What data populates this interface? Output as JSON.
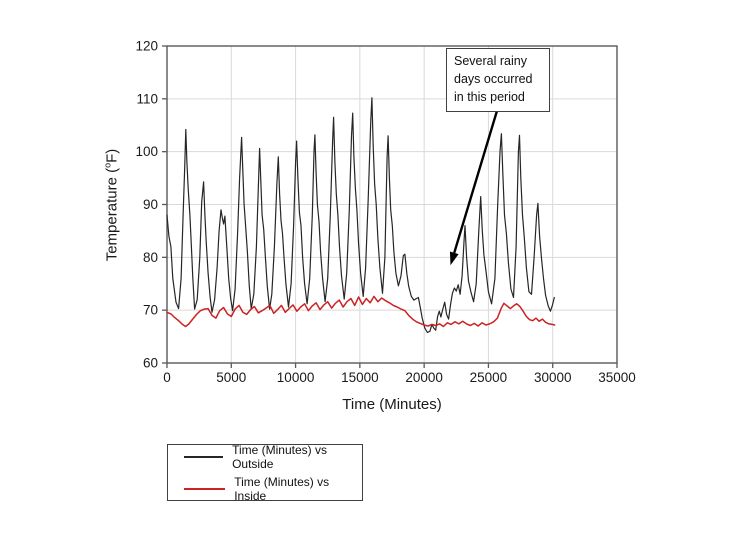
{
  "page": {
    "background": "#ffffff"
  },
  "chart_data": {
    "type": "line",
    "title": "",
    "xlabel": "Time (Minutes)",
    "ylabel": "Temperature (°F)",
    "ylabel_parts": {
      "prefix": "Temperature (",
      "sup": "o",
      "suffix": "F)"
    },
    "xlim": [
      0,
      35000
    ],
    "ylim": [
      60,
      120
    ],
    "xticks": [
      0,
      5000,
      10000,
      15000,
      20000,
      25000,
      30000,
      35000
    ],
    "yticks": [
      60,
      70,
      80,
      90,
      100,
      110,
      120
    ],
    "grid": true,
    "legend_position": "below-left",
    "colors": {
      "frame": "#595959",
      "gridline": "#d9d9d9",
      "tick_text": "#1a1a1a",
      "annotation_border": "#404040",
      "arrow": "#000000"
    },
    "annotation": {
      "text": "Several rainy days occurred in this period",
      "arrow_from": {
        "x": 25700,
        "y": 108.0
      },
      "arrow_to": {
        "x": 22050,
        "y": 78.5
      }
    },
    "series": [
      {
        "name": "Time (Minutes) vs Outside",
        "color": "#262626",
        "width": 1.2,
        "points": [
          [
            0,
            88
          ],
          [
            150,
            84
          ],
          [
            300,
            82
          ],
          [
            450,
            76
          ],
          [
            700,
            71.5
          ],
          [
            900,
            70.3
          ],
          [
            1100,
            76
          ],
          [
            1250,
            88
          ],
          [
            1380,
            97
          ],
          [
            1460,
            104.2
          ],
          [
            1550,
            98
          ],
          [
            1650,
            93
          ],
          [
            1780,
            88
          ],
          [
            1900,
            82
          ],
          [
            2000,
            76.5
          ],
          [
            2150,
            70.2
          ],
          [
            2350,
            72
          ],
          [
            2550,
            80
          ],
          [
            2700,
            90.5
          ],
          [
            2780,
            92.5
          ],
          [
            2850,
            94.3
          ],
          [
            2950,
            88
          ],
          [
            3050,
            83
          ],
          [
            3200,
            77
          ],
          [
            3350,
            72.5
          ],
          [
            3500,
            69.6
          ],
          [
            3700,
            72
          ],
          [
            3900,
            78
          ],
          [
            4050,
            85
          ],
          [
            4200,
            89
          ],
          [
            4300,
            87.5
          ],
          [
            4400,
            86.3
          ],
          [
            4500,
            87.8
          ],
          [
            4650,
            82
          ],
          [
            4800,
            76
          ],
          [
            4950,
            72.3
          ],
          [
            5100,
            69.9
          ],
          [
            5300,
            74
          ],
          [
            5500,
            85
          ],
          [
            5650,
            95
          ],
          [
            5800,
            102.7
          ],
          [
            5900,
            96
          ],
          [
            6000,
            90
          ],
          [
            6100,
            86.5
          ],
          [
            6250,
            81
          ],
          [
            6400,
            74.5
          ],
          [
            6550,
            70.3
          ],
          [
            6750,
            73
          ],
          [
            6950,
            82
          ],
          [
            7100,
            93
          ],
          [
            7200,
            100.6
          ],
          [
            7300,
            94
          ],
          [
            7400,
            88
          ],
          [
            7520,
            85.3
          ],
          [
            7650,
            80
          ],
          [
            7800,
            74.5
          ],
          [
            7980,
            70.2
          ],
          [
            8150,
            73
          ],
          [
            8350,
            82
          ],
          [
            8550,
            94
          ],
          [
            8660,
            99
          ],
          [
            8760,
            92
          ],
          [
            8870,
            87
          ],
          [
            8980,
            84.5
          ],
          [
            9100,
            80
          ],
          [
            9250,
            75
          ],
          [
            9450,
            70.6
          ],
          [
            9650,
            75
          ],
          [
            9850,
            86
          ],
          [
            10000,
            98
          ],
          [
            10080,
            102
          ],
          [
            10180,
            95
          ],
          [
            10300,
            88.5
          ],
          [
            10420,
            86
          ],
          [
            10550,
            80
          ],
          [
            10700,
            75
          ],
          [
            10900,
            71.2
          ],
          [
            11100,
            76
          ],
          [
            11300,
            88
          ],
          [
            11430,
            100
          ],
          [
            11500,
            103.2
          ],
          [
            11600,
            96
          ],
          [
            11700,
            90
          ],
          [
            11820,
            86.8
          ],
          [
            11950,
            81
          ],
          [
            12100,
            76
          ],
          [
            12300,
            71.6
          ],
          [
            12500,
            76
          ],
          [
            12700,
            88
          ],
          [
            12880,
            102
          ],
          [
            12960,
            106.5
          ],
          [
            13060,
            98
          ],
          [
            13170,
            92
          ],
          [
            13290,
            88
          ],
          [
            13420,
            82
          ],
          [
            13570,
            76.5
          ],
          [
            13780,
            72.1
          ],
          [
            13980,
            77
          ],
          [
            14180,
            89
          ],
          [
            14350,
            103
          ],
          [
            14440,
            107.3
          ],
          [
            14540,
            99
          ],
          [
            14650,
            93
          ],
          [
            14770,
            89
          ],
          [
            14900,
            82.5
          ],
          [
            15060,
            77
          ],
          [
            15260,
            72.6
          ],
          [
            15450,
            78
          ],
          [
            15650,
            91
          ],
          [
            15850,
            106
          ],
          [
            15940,
            110.2
          ],
          [
            16040,
            101
          ],
          [
            16150,
            94
          ],
          [
            16270,
            90
          ],
          [
            16400,
            83.5
          ],
          [
            16560,
            78
          ],
          [
            16760,
            73.2
          ],
          [
            16950,
            80
          ],
          [
            17120,
            99
          ],
          [
            17200,
            103
          ],
          [
            17300,
            95
          ],
          [
            17400,
            89
          ],
          [
            17520,
            86
          ],
          [
            17650,
            81
          ],
          [
            17800,
            77
          ],
          [
            18000,
            74.6
          ],
          [
            18200,
            76.5
          ],
          [
            18380,
            80.3
          ],
          [
            18500,
            80.6
          ],
          [
            18650,
            77
          ],
          [
            18800,
            74.5
          ],
          [
            19000,
            72.6
          ],
          [
            19200,
            71.9
          ],
          [
            19400,
            72.2
          ],
          [
            19550,
            72.4
          ],
          [
            19700,
            70.5
          ],
          [
            19850,
            68.5
          ],
          [
            20050,
            66.6
          ],
          [
            20250,
            65.8
          ],
          [
            20450,
            66.0
          ],
          [
            20600,
            67.3
          ],
          [
            20750,
            66.6
          ],
          [
            20900,
            66.2
          ],
          [
            21050,
            68.8
          ],
          [
            21180,
            69.8
          ],
          [
            21300,
            68.7
          ],
          [
            21450,
            70.2
          ],
          [
            21600,
            71.5
          ],
          [
            21750,
            69.2
          ],
          [
            21900,
            68.3
          ],
          [
            22050,
            71
          ],
          [
            22200,
            73.2
          ],
          [
            22350,
            74.2
          ],
          [
            22500,
            73.6
          ],
          [
            22650,
            74.8
          ],
          [
            22800,
            73
          ],
          [
            22950,
            76.5
          ],
          [
            23100,
            83
          ],
          [
            23180,
            86
          ],
          [
            23300,
            80
          ],
          [
            23450,
            75.5
          ],
          [
            23650,
            73.3
          ],
          [
            23850,
            71.6
          ],
          [
            24050,
            75
          ],
          [
            24250,
            85
          ],
          [
            24400,
            91.5
          ],
          [
            24520,
            85
          ],
          [
            24650,
            80.5
          ],
          [
            24800,
            77.5
          ],
          [
            25000,
            73.5
          ],
          [
            25250,
            71.2
          ],
          [
            25500,
            76
          ],
          [
            25720,
            90
          ],
          [
            25900,
            100
          ],
          [
            26010,
            103.4
          ],
          [
            26120,
            96
          ],
          [
            26250,
            88
          ],
          [
            26400,
            84.5
          ],
          [
            26550,
            79
          ],
          [
            26750,
            74
          ],
          [
            26950,
            72.4
          ],
          [
            27150,
            82
          ],
          [
            27330,
            100
          ],
          [
            27420,
            103.1
          ],
          [
            27520,
            95
          ],
          [
            27650,
            88
          ],
          [
            27780,
            84
          ],
          [
            27950,
            78
          ],
          [
            28150,
            73.5
          ],
          [
            28350,
            73
          ],
          [
            28550,
            80
          ],
          [
            28750,
            88
          ],
          [
            28850,
            90.2
          ],
          [
            28980,
            84
          ],
          [
            29120,
            80
          ],
          [
            29280,
            76
          ],
          [
            29450,
            72.8
          ],
          [
            29650,
            70.8
          ],
          [
            29820,
            69.8
          ],
          [
            29980,
            71
          ],
          [
            30120,
            72.4
          ]
        ]
      },
      {
        "name": "Time (Minutes) vs Inside",
        "color": "#cc2222",
        "width": 1.5,
        "points": [
          [
            0,
            69.6
          ],
          [
            300,
            69.3
          ],
          [
            600,
            68.6
          ],
          [
            900,
            68
          ],
          [
            1200,
            67.3
          ],
          [
            1450,
            66.9
          ],
          [
            1700,
            67.4
          ],
          [
            2000,
            68.3
          ],
          [
            2300,
            69.2
          ],
          [
            2600,
            69.9
          ],
          [
            2900,
            70.2
          ],
          [
            3200,
            70.3
          ],
          [
            3500,
            69.0
          ],
          [
            3800,
            68.5
          ],
          [
            4100,
            69.9
          ],
          [
            4400,
            70.5
          ],
          [
            4700,
            69.3
          ],
          [
            5000,
            68.8
          ],
          [
            5300,
            70.2
          ],
          [
            5600,
            70.9
          ],
          [
            5900,
            69.6
          ],
          [
            6200,
            69.2
          ],
          [
            6500,
            70.1
          ],
          [
            6800,
            70.7
          ],
          [
            7100,
            69.5
          ],
          [
            7400,
            69.9
          ],
          [
            7700,
            70.4
          ],
          [
            8000,
            70.9
          ],
          [
            8300,
            69.4
          ],
          [
            8600,
            70.1
          ],
          [
            8900,
            70.9
          ],
          [
            9200,
            69.6
          ],
          [
            9500,
            70.3
          ],
          [
            9800,
            71
          ],
          [
            10100,
            69.8
          ],
          [
            10400,
            70.6
          ],
          [
            10700,
            71.2
          ],
          [
            11000,
            69.9
          ],
          [
            11300,
            70.8
          ],
          [
            11600,
            71.4
          ],
          [
            11900,
            70.1
          ],
          [
            12200,
            71
          ],
          [
            12500,
            71.6
          ],
          [
            12800,
            70.4
          ],
          [
            13100,
            71.3
          ],
          [
            13400,
            71.9
          ],
          [
            13700,
            70.6
          ],
          [
            14000,
            71.6
          ],
          [
            14300,
            72.2
          ],
          [
            14600,
            70.9
          ],
          [
            14900,
            72.5
          ],
          [
            15200,
            71.1
          ],
          [
            15500,
            72.2
          ],
          [
            15800,
            71.4
          ],
          [
            16100,
            72.6
          ],
          [
            16400,
            71.6
          ],
          [
            16700,
            72.3
          ],
          [
            17000,
            71.8
          ],
          [
            17300,
            71.4
          ],
          [
            17600,
            70.9
          ],
          [
            17900,
            70.6
          ],
          [
            18200,
            70.2
          ],
          [
            18500,
            69.9
          ],
          [
            18800,
            69.0
          ],
          [
            19100,
            68.3
          ],
          [
            19400,
            67.8
          ],
          [
            19700,
            67.5
          ],
          [
            20000,
            67.2
          ],
          [
            20300,
            67.0
          ],
          [
            20600,
            67.3
          ],
          [
            20900,
            67.1
          ],
          [
            21200,
            67.4
          ],
          [
            21500,
            66.9
          ],
          [
            21800,
            67.6
          ],
          [
            22100,
            67.3
          ],
          [
            22400,
            67.8
          ],
          [
            22700,
            67.4
          ],
          [
            23000,
            67.9
          ],
          [
            23300,
            67.4
          ],
          [
            23600,
            67.1
          ],
          [
            23900,
            67.5
          ],
          [
            24200,
            67.0
          ],
          [
            24500,
            67.6
          ],
          [
            24800,
            67.2
          ],
          [
            25100,
            67.4
          ],
          [
            25400,
            67.8
          ],
          [
            25700,
            68.5
          ],
          [
            26000,
            70.4
          ],
          [
            26200,
            71.3
          ],
          [
            26450,
            70.8
          ],
          [
            26700,
            70.3
          ],
          [
            26950,
            70.8
          ],
          [
            27200,
            71.2
          ],
          [
            27450,
            70.7
          ],
          [
            27700,
            69.8
          ],
          [
            27950,
            68.8
          ],
          [
            28200,
            68.2
          ],
          [
            28450,
            68.0
          ],
          [
            28700,
            68.5
          ],
          [
            28950,
            67.9
          ],
          [
            29200,
            68.3
          ],
          [
            29450,
            67.7
          ],
          [
            29700,
            67.4
          ],
          [
            29950,
            67.3
          ],
          [
            30150,
            67.2
          ]
        ]
      }
    ]
  }
}
